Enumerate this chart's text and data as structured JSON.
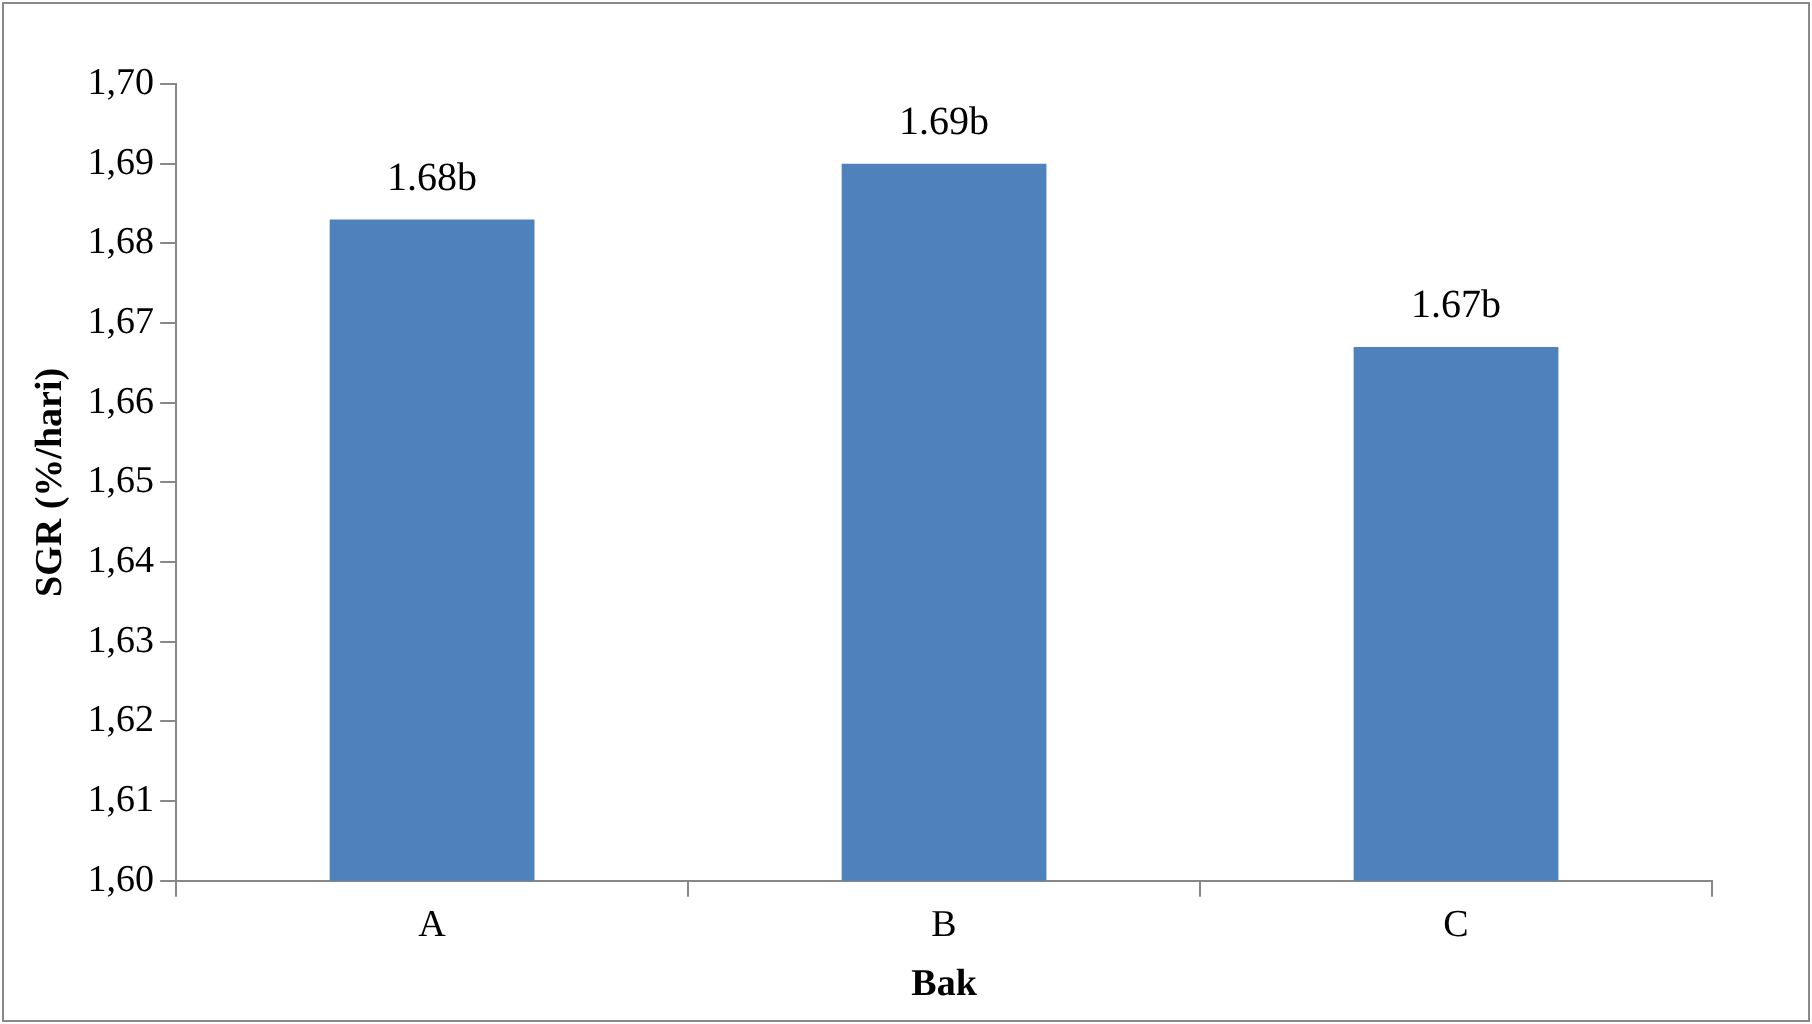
{
  "chart_data": {
    "type": "bar",
    "xlabel": "Bak",
    "ylabel": "SGR (%/hari)",
    "categories": [
      "A",
      "B",
      "C"
    ],
    "values": [
      1.683,
      1.69,
      1.667
    ],
    "value_labels": [
      "1.68b",
      "1.69b",
      "1.67b"
    ],
    "color": "#4f81bd",
    "ylim": [
      1.6,
      1.7
    ],
    "yticks": [
      {
        "value": 1.6,
        "label": "1,60"
      },
      {
        "value": 1.61,
        "label": "1,61"
      },
      {
        "value": 1.62,
        "label": "1,62"
      },
      {
        "value": 1.63,
        "label": "1,63"
      },
      {
        "value": 1.64,
        "label": "1,64"
      },
      {
        "value": 1.65,
        "label": "1,65"
      },
      {
        "value": 1.66,
        "label": "1,66"
      },
      {
        "value": 1.67,
        "label": "1,67"
      },
      {
        "value": 1.68,
        "label": "1,68"
      },
      {
        "value": 1.69,
        "label": "1,69"
      },
      {
        "value": 1.7,
        "label": "1,70"
      }
    ],
    "grid": false,
    "legend": false
  }
}
